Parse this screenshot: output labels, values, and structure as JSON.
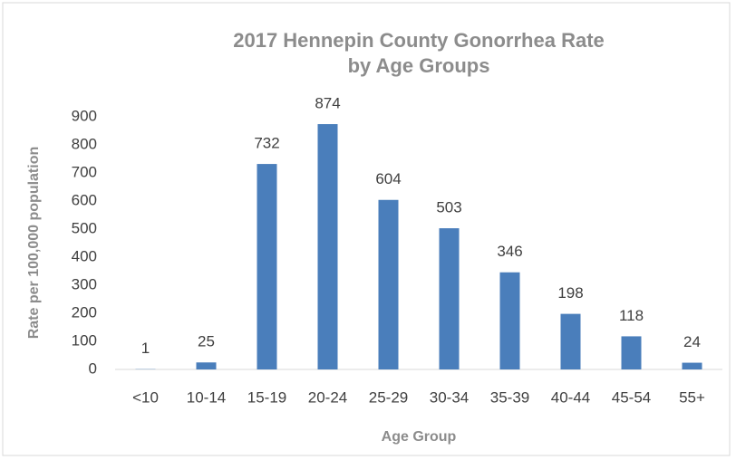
{
  "chart_data": {
    "type": "bar",
    "title": [
      "2017 Hennepin County Gonorrhea Rate",
      "by Age Groups"
    ],
    "x_label": "Age Group",
    "y_label": "Rate per 100,000 population",
    "categories": [
      "<10",
      "10-14",
      "15-19",
      "20-24",
      "25-29",
      "30-34",
      "35-39",
      "40-44",
      "45-54",
      "55+"
    ],
    "values": [
      1,
      25,
      732,
      874,
      604,
      503,
      346,
      198,
      118,
      24
    ],
    "color": "#4a7ebb",
    "ylim": [
      0,
      900
    ],
    "yticks": [
      0,
      100,
      200,
      300,
      400,
      500,
      600,
      700,
      800,
      900
    ],
    "grid": false
  }
}
